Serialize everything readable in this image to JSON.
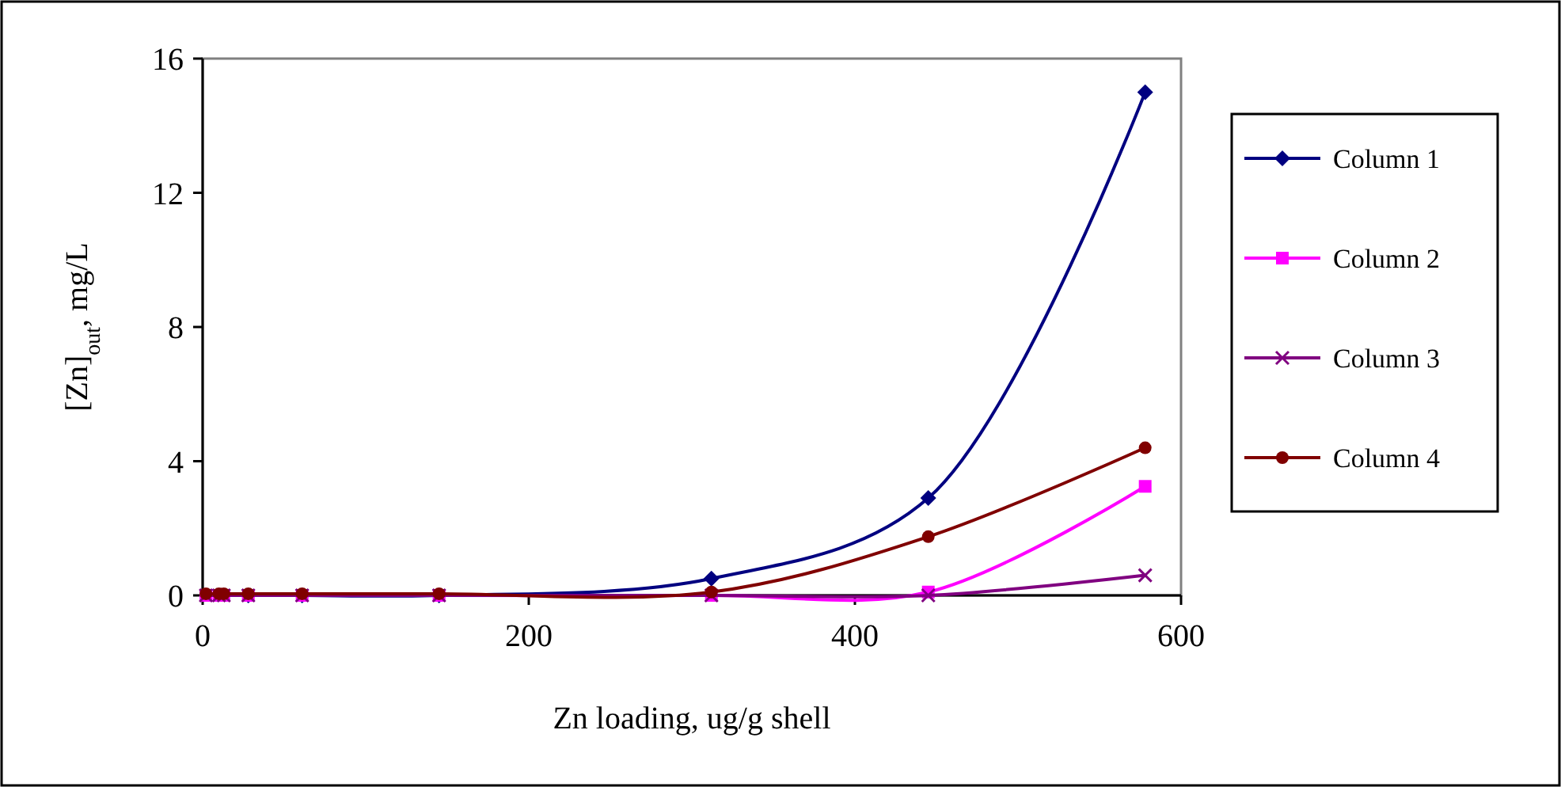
{
  "chart_data": {
    "type": "line",
    "xlabel": "Zn loading, ug/g shell",
    "ylabel": "[Zn]$_{out}$, mg/L",
    "x": [
      2,
      10,
      13,
      28,
      61,
      145,
      312,
      445,
      578
    ],
    "xlim": [
      0,
      600
    ],
    "xticks": [
      0,
      200,
      400,
      600
    ],
    "ylim": [
      0,
      16
    ],
    "yticks": [
      0,
      4,
      8,
      12,
      16
    ],
    "grid": false,
    "legend": "right",
    "line_style": "solid",
    "series": [
      {
        "name": "Column 1",
        "color": "#000080",
        "marker": "diamond",
        "values": [
          null,
          null,
          null,
          0,
          0,
          0,
          0.5,
          2.9,
          15.0
        ]
      },
      {
        "name": "Column 2",
        "color": "#ff00ff",
        "marker": "square",
        "values": [
          0,
          0,
          0,
          0,
          0,
          0,
          0,
          0.1,
          3.25
        ]
      },
      {
        "name": "Column 3",
        "color": "#800080",
        "marker": "cross",
        "values": [
          0,
          0,
          0,
          0,
          0,
          0,
          0,
          0,
          0.6
        ]
      },
      {
        "name": "Column 4",
        "color": "#800000",
        "marker": "circle",
        "values": [
          0.05,
          0.05,
          0.05,
          0.05,
          0.05,
          0.05,
          0.1,
          1.75,
          4.4
        ]
      }
    ]
  }
}
